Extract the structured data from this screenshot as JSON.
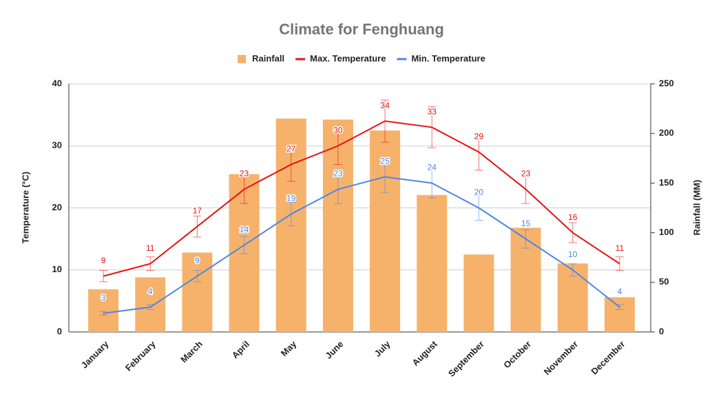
{
  "chart_data": {
    "type": "combo",
    "title": "Climate for Fenghuang",
    "categories": [
      "January",
      "February",
      "March",
      "April",
      "May",
      "June",
      "July",
      "August",
      "September",
      "October",
      "November",
      "December"
    ],
    "series": [
      {
        "name": "Rainfall",
        "type": "bar",
        "axis": "y2",
        "color": "#f6b26b",
        "values": [
          43,
          55,
          80,
          159,
          215,
          214,
          203,
          138,
          78,
          105,
          69,
          35
        ]
      },
      {
        "name": "Max. Temperature",
        "type": "line",
        "color": "#e81010",
        "values": [
          9,
          11,
          17,
          23,
          27,
          30,
          34,
          33,
          29,
          23,
          16,
          11
        ],
        "errors": [
          0.9,
          1.1,
          1.7,
          2.3,
          2.7,
          3,
          3.4,
          3.3,
          2.9,
          2.3,
          1.6,
          1.1
        ]
      },
      {
        "name": "Min. Temperature",
        "type": "line",
        "color": "#4a86e8",
        "values": [
          3,
          4,
          9,
          14,
          19,
          23,
          25,
          24,
          20,
          15,
          10,
          4
        ],
        "errors": [
          0.3,
          0.4,
          0.9,
          1.4,
          1.9,
          2.3,
          2.5,
          2.4,
          2,
          1.5,
          1,
          0.4
        ]
      }
    ],
    "ylabel": "Temperature (°C)",
    "y2label": "Rainfall (MM)",
    "ylim": [
      0,
      40
    ],
    "yticks": [
      0,
      10,
      20,
      30,
      40
    ],
    "y2lim": [
      0,
      250
    ],
    "y2ticks": [
      0,
      50,
      100,
      150,
      200,
      250
    ],
    "grid": true,
    "legend": "top"
  }
}
